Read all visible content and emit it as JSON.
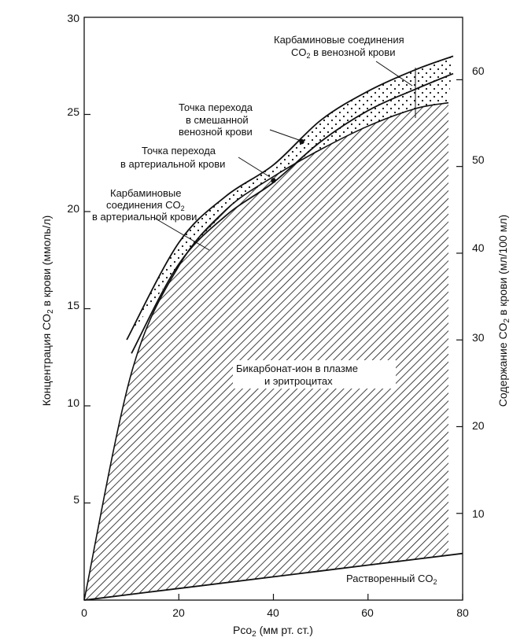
{
  "chart_data": {
    "type": "area",
    "xlabel_main": "Pco",
    "xlabel_sub": "2",
    "xlabel_rest": " (мм рт. ст.)",
    "ylabel_left_main": "Концентрация CO",
    "ylabel_left_sub": "2",
    "ylabel_left_rest": " в крови (ммоль/л)",
    "ylabel_right_main": "Содержание CO",
    "ylabel_right_sub": "2",
    "ylabel_right_rest": " в крови (мл/100 мл)",
    "xlim": [
      0,
      80
    ],
    "ylim_left": [
      0,
      30
    ],
    "x_ticks": [
      "0",
      "20",
      "40",
      "60",
      "80"
    ],
    "y_left_ticks": [
      "5",
      "10",
      "15",
      "20",
      "25",
      "30"
    ],
    "y_right_ticks": [
      "10",
      "20",
      "30",
      "40",
      "50",
      "60"
    ],
    "series": [
      {
        "name": "Растворенный CO₂",
        "x": [
          0,
          20,
          40,
          60,
          80
        ],
        "y": [
          0,
          0.6,
          1.2,
          1.8,
          2.4
        ]
      },
      {
        "name": "Бикарбонат-ион в плазме и эритроцитах",
        "x": [
          0,
          10,
          20,
          30,
          40,
          50,
          60,
          70,
          77
        ],
        "y": [
          0,
          11.7,
          17.2,
          20.1,
          21.8,
          23.2,
          24.4,
          25.3,
          25.6
        ]
      },
      {
        "name": "Карбаминовые соединения CO₂ в артериальной крови",
        "x": [
          10,
          20,
          30,
          40,
          50,
          60,
          70,
          78
        ],
        "y": [
          12.7,
          17.3,
          19.8,
          21.5,
          23.6,
          25.2,
          26.3,
          27.1
        ]
      },
      {
        "name": "Карбаминовые соединения CO₂ в венозной крови",
        "x": [
          9,
          20,
          30,
          40,
          50,
          60,
          70,
          78
        ],
        "y": [
          13.4,
          18.4,
          20.8,
          22.4,
          24.7,
          26.2,
          27.3,
          28.0
        ]
      }
    ],
    "points": [
      {
        "name": "Точка перехода в артериальной крови",
        "x": 40,
        "y": 21.6
      },
      {
        "name": "Точка перехода в смешанной венозной крови",
        "x": 46,
        "y": 23.6
      }
    ],
    "annotations": {
      "venous_carb_1": "Карбаминовые соединения",
      "venous_carb_2_main": "CO",
      "venous_carb_2_sub": "2",
      "venous_carb_2_rest": " в венозной крови",
      "mixed_point_1": "Точка перехода",
      "mixed_point_2": "в смешанной",
      "mixed_point_3": "венозной крови",
      "art_point_1": "Точка перехода",
      "art_point_2": "в артериальной крови",
      "art_carb_1": "Карбаминовые",
      "art_carb_2_main": "соединения CO",
      "art_carb_2_sub": "2",
      "art_carb_3": "в артериальной крови",
      "bicarb_1": "Бикарбонат-ион в плазме",
      "bicarb_2": "и эритроцитах",
      "dissolved_main": "Растворенный CO",
      "dissolved_sub": "2"
    }
  }
}
